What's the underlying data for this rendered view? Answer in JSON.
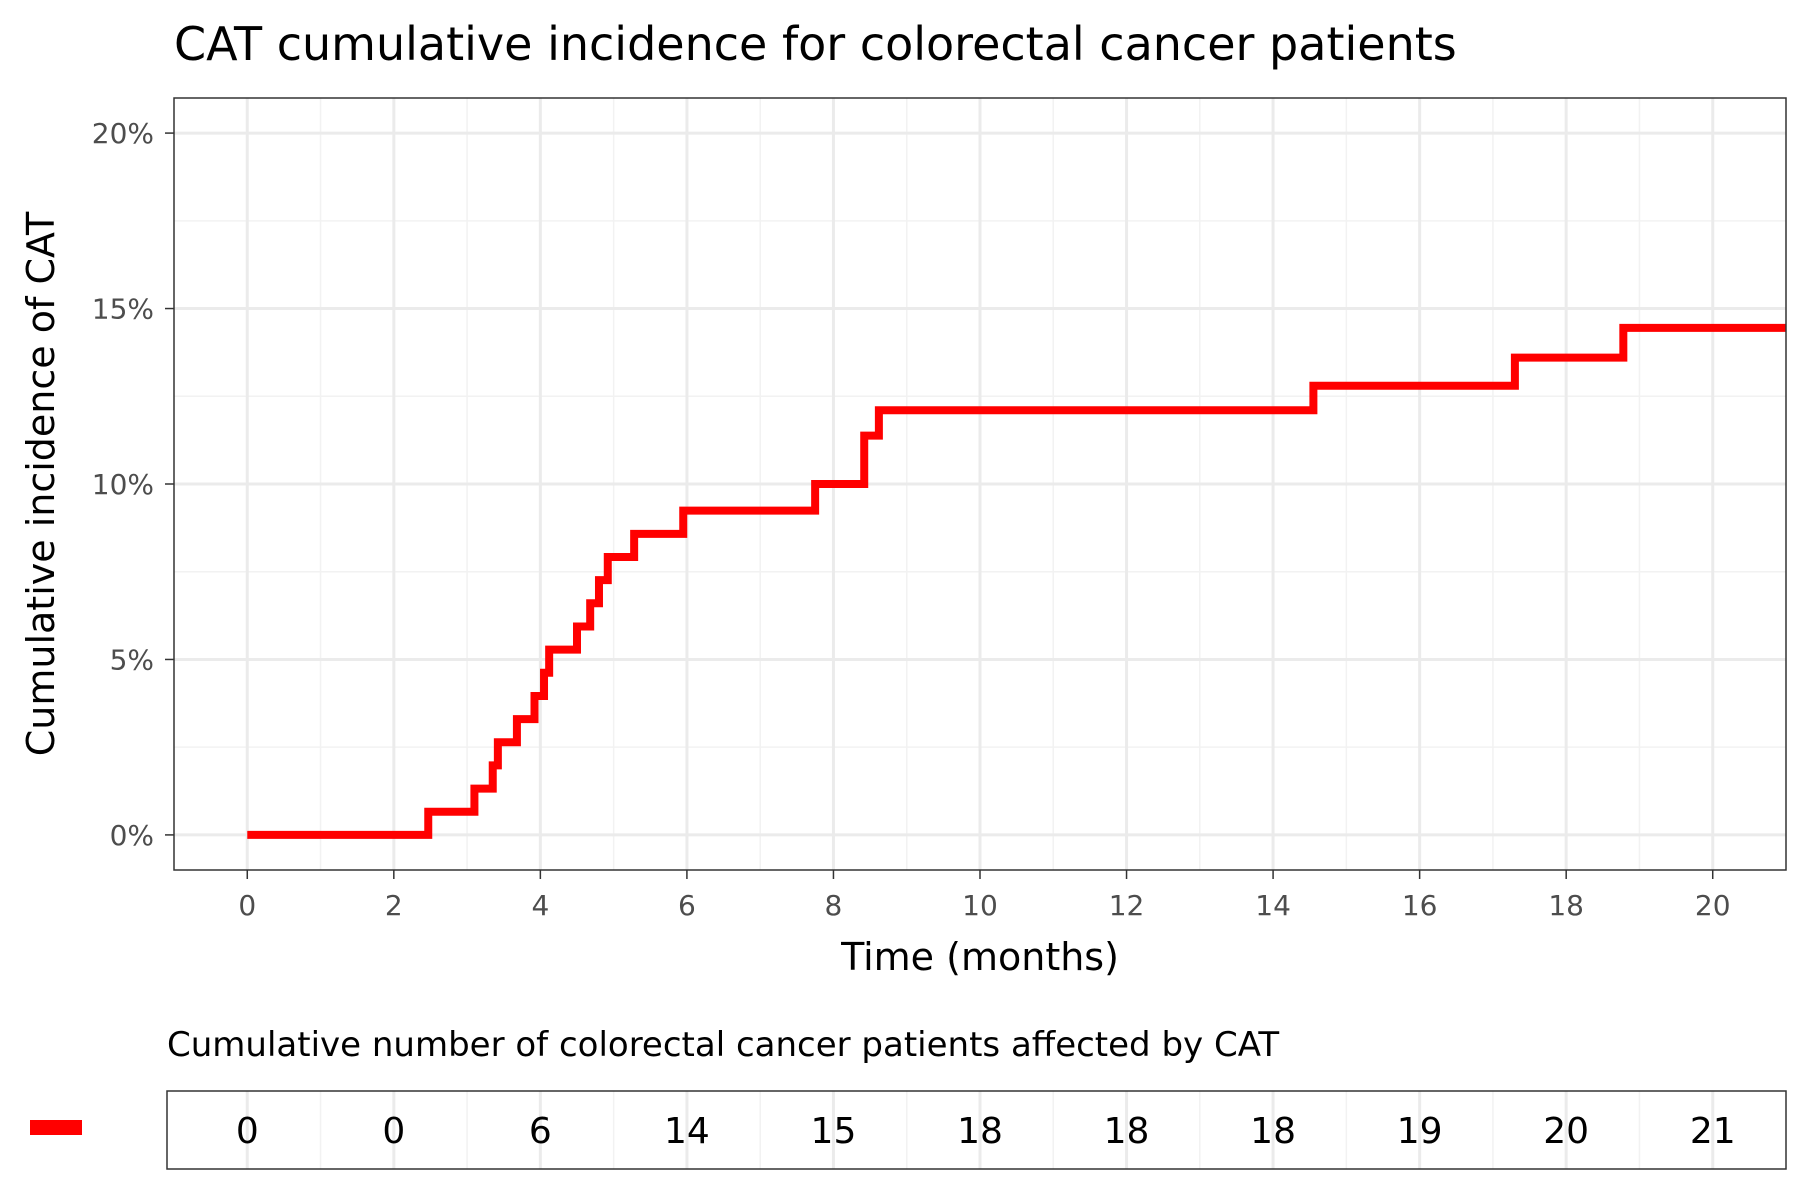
{
  "chart_data": {
    "type": "line",
    "step": true,
    "title": "CAT cumulative incidence for colorectal cancer patients",
    "xlabel": "Time (months)",
    "ylabel": "Cumulative incidence of CAT",
    "xlim": [
      -1,
      21
    ],
    "ylim": [
      -0.01,
      0.21
    ],
    "x_ticks": [
      0,
      2,
      4,
      6,
      8,
      10,
      12,
      14,
      16,
      18,
      20
    ],
    "x_tick_labels": [
      "0",
      "2",
      "4",
      "6",
      "8",
      "10",
      "12",
      "14",
      "16",
      "18",
      "20"
    ],
    "y_ticks": [
      0,
      0.05,
      0.1,
      0.15,
      0.2
    ],
    "y_tick_labels": [
      "0%",
      "5%",
      "10%",
      "15%",
      "20%"
    ],
    "grid": true,
    "series": [
      {
        "color": "#ff0000",
        "x": [
          0,
          2.47,
          3.1,
          3.35,
          3.42,
          3.68,
          3.92,
          4.05,
          4.12,
          4.5,
          4.68,
          4.8,
          4.92,
          5.28,
          5.95,
          7.75,
          8.42,
          8.62,
          14.55,
          17.3,
          18.78,
          21
        ],
        "y": [
          0,
          0.0066,
          0.0132,
          0.0198,
          0.0264,
          0.033,
          0.0396,
          0.0462,
          0.0528,
          0.0594,
          0.066,
          0.0726,
          0.0792,
          0.0858,
          0.0924,
          0.1,
          0.1138,
          0.121,
          0.128,
          0.136,
          0.1445,
          0.1445
        ]
      }
    ]
  },
  "risk_table": {
    "title": "Cumulative number of colorectal cancer patients affected by CAT",
    "times": [
      0,
      2,
      4,
      6,
      8,
      10,
      12,
      14,
      16,
      18,
      20
    ],
    "values": [
      "0",
      "0",
      "6",
      "14",
      "15",
      "18",
      "18",
      "18",
      "19",
      "20",
      "21"
    ],
    "color": "#ff0000"
  }
}
